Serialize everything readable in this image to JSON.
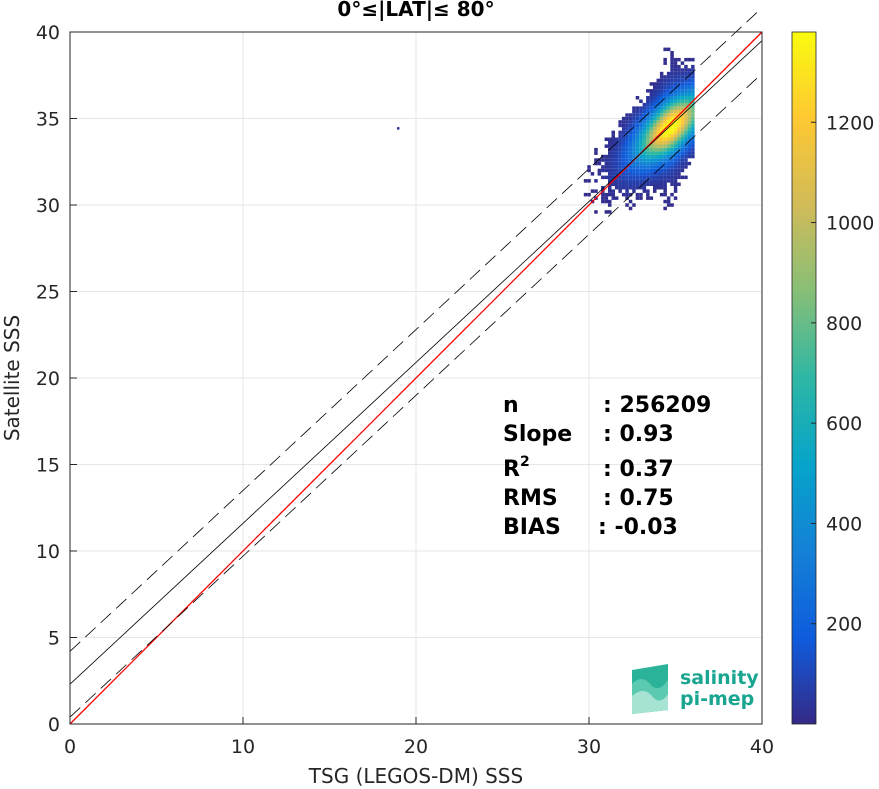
{
  "chart_data": {
    "type": "heatmap",
    "title": "0°≤|LAT|≤ 80°",
    "xlabel": "TSG (LEGOS-DM) SSS",
    "ylabel": "Satellite SSS",
    "xlim": [
      0,
      40
    ],
    "ylim": [
      0,
      40
    ],
    "x_ticks": [
      "0",
      "10",
      "20",
      "30",
      "40"
    ],
    "y_ticks": [
      "0",
      "5",
      "10",
      "15",
      "20",
      "25",
      "30",
      "35",
      "40"
    ],
    "grid": true,
    "colorbar": {
      "min": 0,
      "max": 1380,
      "ticks": [
        "200",
        "400",
        "600",
        "800",
        "1000",
        "1200"
      ],
      "colormap": "parula"
    },
    "density": {
      "peak": {
        "x": 34.6,
        "y": 34.4,
        "count": 1350
      },
      "x_range": [
        28.5,
        36.0
      ],
      "y_range": [
        27.5,
        39.5
      ],
      "outlier": {
        "x": 18.9,
        "y": 34.5
      }
    },
    "lines": [
      {
        "name": "one-to-one",
        "color": "#ff0000",
        "style": "solid",
        "x": [
          0,
          40
        ],
        "y": [
          0,
          40
        ]
      },
      {
        "name": "regression",
        "color": "#000000",
        "style": "solid",
        "x": [
          0,
          40
        ],
        "y": [
          2.3,
          39.5
        ]
      },
      {
        "name": "regression-upper",
        "color": "#000000",
        "style": "dashed",
        "x": [
          0,
          40
        ],
        "y": [
          4.2,
          41.4
        ]
      },
      {
        "name": "regression-lower",
        "color": "#000000",
        "style": "dashed",
        "x": [
          0,
          40
        ],
        "y": [
          0.4,
          37.6
        ]
      }
    ],
    "stats": [
      {
        "label": "n",
        "value": ": 256209"
      },
      {
        "label": "Slope",
        "value": ": 0.93"
      },
      {
        "label": "R",
        "label_sup": "2",
        "value": ": 0.37"
      },
      {
        "label": "RMS",
        "value": ": 0.75"
      },
      {
        "label": "BIAS",
        "value": ": -0.03"
      }
    ]
  },
  "logo": {
    "line1": "salinity",
    "line2": "pi-mep"
  },
  "colors": {
    "one_to_one": "#ff0000",
    "regression": "#000000",
    "logo": "#1aa590",
    "grid": "#e6e6e6"
  }
}
